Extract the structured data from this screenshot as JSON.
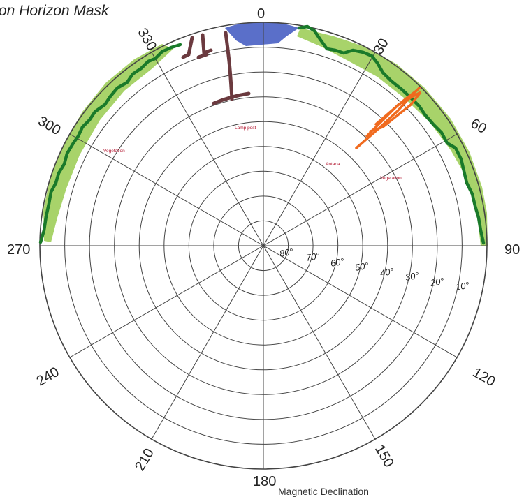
{
  "diagram": {
    "title": "on Horizon Mask",
    "footer": "Magnetic Declination",
    "azimuth_labels": [
      "0",
      "30",
      "60",
      "90",
      "120",
      "150",
      "180",
      "210",
      "240",
      "270",
      "300",
      "330"
    ],
    "elevation_labels": [
      "80°",
      "70°",
      "60°",
      "50°",
      "40°",
      "30°",
      "20°",
      "10°"
    ],
    "obstruction_labels": {
      "lamp_post": "Lamp post",
      "antenna": "Antana",
      "vegetation_left": "Vegetation",
      "vegetation_right": "Vegetation"
    },
    "colors": {
      "horizon_line": "#1a7a2a",
      "vegetation_fill": "#a8d36a",
      "sky_obstruction_blue": "#5a6fc9",
      "lamp_post": "#6b3a3f",
      "antenna": "#f06a1e",
      "grid": "#444444",
      "label_red": "#b0102a"
    },
    "icons": [
      "polar-sun-path-grid-icon"
    ]
  }
}
